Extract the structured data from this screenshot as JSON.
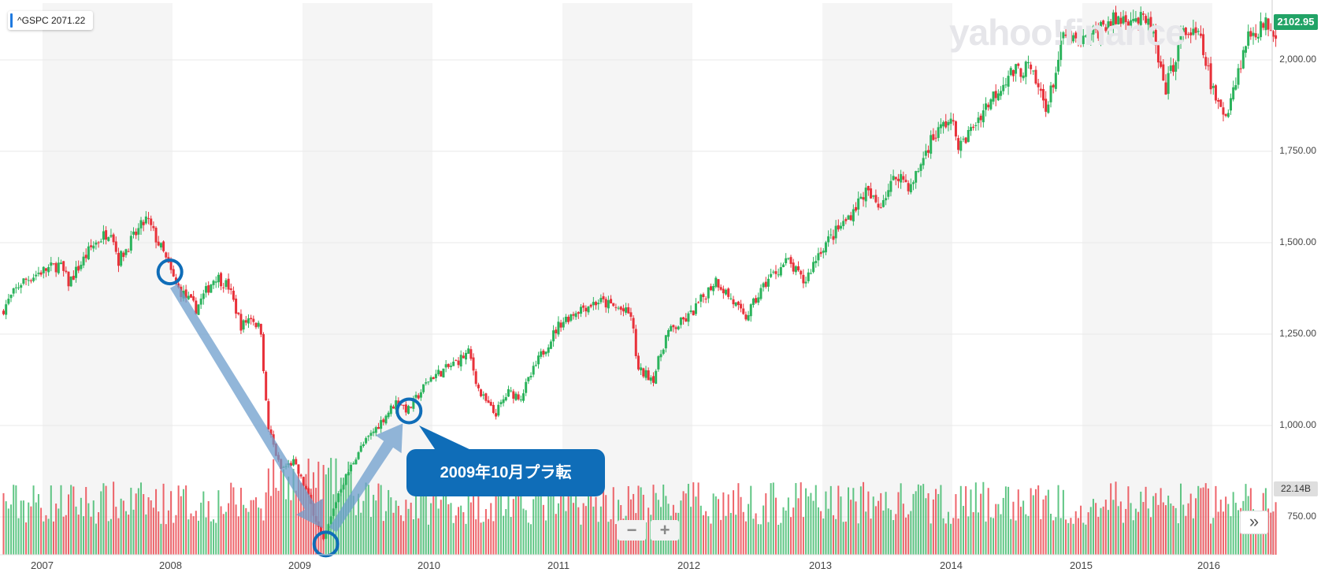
{
  "chart_data": {
    "type": "candlestick",
    "ticker_label": "^GSPC 2071.22",
    "last_price": "2102.95",
    "volume_label": "22.14B",
    "watermark": "yahoo!finance",
    "y_ticks": [
      "2,000.00",
      "1,750.00",
      "1,500.00",
      "1,250.00",
      "1,000.00",
      "750.00"
    ],
    "y_tick_values": [
      2000,
      1750,
      1500,
      1250,
      1000,
      750
    ],
    "ylim": [
      630,
      2135
    ],
    "x_ticks": [
      "2007",
      "2008",
      "2009",
      "2010",
      "2011",
      "2012",
      "2013",
      "2014",
      "2015",
      "2016"
    ],
    "x_tick_values": [
      2007.0,
      2008.0,
      2009.0,
      2010.0,
      2011.0,
      2012.0,
      2013.0,
      2014.0,
      2015.0,
      2016.0
    ],
    "xlim": [
      2006.7,
      2016.5
    ],
    "price_path": [
      [
        2006.7,
        1310
      ],
      [
        2006.85,
        1390
      ],
      [
        2007.0,
        1420
      ],
      [
        2007.15,
        1440
      ],
      [
        2007.22,
        1390
      ],
      [
        2007.4,
        1490
      ],
      [
        2007.55,
        1540
      ],
      [
        2007.6,
        1450
      ],
      [
        2007.75,
        1530
      ],
      [
        2007.82,
        1565
      ],
      [
        2007.95,
        1470
      ],
      [
        2008.05,
        1380
      ],
      [
        2008.2,
        1320
      ],
      [
        2008.35,
        1410
      ],
      [
        2008.45,
        1380
      ],
      [
        2008.55,
        1270
      ],
      [
        2008.62,
        1300
      ],
      [
        2008.7,
        1260
      ],
      [
        2008.75,
        1000
      ],
      [
        2008.85,
        880
      ],
      [
        2008.95,
        900
      ],
      [
        2009.05,
        820
      ],
      [
        2009.18,
        680
      ],
      [
        2009.3,
        820
      ],
      [
        2009.45,
        930
      ],
      [
        2009.6,
        1000
      ],
      [
        2009.75,
        1070
      ],
      [
        2009.83,
        1040
      ],
      [
        2010.0,
        1130
      ],
      [
        2010.15,
        1160
      ],
      [
        2010.3,
        1200
      ],
      [
        2010.38,
        1090
      ],
      [
        2010.5,
        1030
      ],
      [
        2010.6,
        1090
      ],
      [
        2010.7,
        1080
      ],
      [
        2010.85,
        1190
      ],
      [
        2011.0,
        1280
      ],
      [
        2011.15,
        1320
      ],
      [
        2011.3,
        1340
      ],
      [
        2011.45,
        1320
      ],
      [
        2011.55,
        1300
      ],
      [
        2011.6,
        1150
      ],
      [
        2011.72,
        1130
      ],
      [
        2011.82,
        1250
      ],
      [
        2012.0,
        1300
      ],
      [
        2012.2,
        1400
      ],
      [
        2012.35,
        1330
      ],
      [
        2012.42,
        1290
      ],
      [
        2012.6,
        1400
      ],
      [
        2012.75,
        1450
      ],
      [
        2012.88,
        1390
      ],
      [
        2013.0,
        1480
      ],
      [
        2013.2,
        1560
      ],
      [
        2013.35,
        1640
      ],
      [
        2013.45,
        1600
      ],
      [
        2013.6,
        1690
      ],
      [
        2013.7,
        1650
      ],
      [
        2013.85,
        1780
      ],
      [
        2014.0,
        1840
      ],
      [
        2014.08,
        1760
      ],
      [
        2014.25,
        1860
      ],
      [
        2014.45,
        1960
      ],
      [
        2014.6,
        1980
      ],
      [
        2014.75,
        1870
      ],
      [
        2014.88,
        2070
      ],
      [
        2015.0,
        2040
      ],
      [
        2015.2,
        2100
      ],
      [
        2015.4,
        2120
      ],
      [
        2015.55,
        2090
      ],
      [
        2015.65,
        1910
      ],
      [
        2015.8,
        2080
      ],
      [
        2015.92,
        2060
      ],
      [
        2016.05,
        1880
      ],
      [
        2016.12,
        1850
      ],
      [
        2016.3,
        2070
      ],
      [
        2016.45,
        2100
      ],
      [
        2016.5,
        2080
      ]
    ],
    "annotations": {
      "markers": [
        {
          "x": 2007.98,
          "y": 1420
        },
        {
          "x": 2009.18,
          "y": 676
        },
        {
          "x": 2009.82,
          "y": 1040
        }
      ],
      "callout_text": "2009年10月プラ転"
    }
  }
}
